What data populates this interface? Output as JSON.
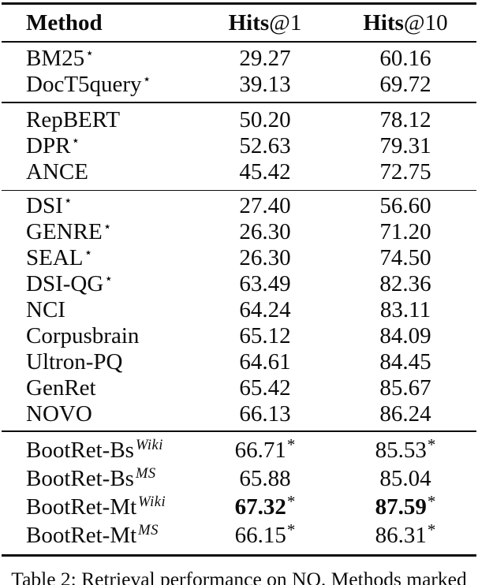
{
  "colors": {
    "text": "#0b0b0b",
    "background": "#ffffff"
  },
  "table": {
    "caption": "Table 2: Retrieval performance on NQ. Methods marked",
    "header": {
      "method": "Method",
      "hits1": {
        "bold": "Hits",
        "rest": "@1"
      },
      "hits10": {
        "bold": "Hits",
        "rest": "@10"
      }
    },
    "groups": [
      {
        "rows": [
          {
            "method": "BM25",
            "method_sup": "⋆",
            "hits1": "29.27",
            "hits10": "60.16"
          },
          {
            "method": "DocT5query",
            "method_sup": "⋆",
            "hits1": "39.13",
            "hits10": "69.72"
          }
        ]
      },
      {
        "rows": [
          {
            "method": "RepBERT",
            "hits1": "50.20",
            "hits10": "78.12"
          },
          {
            "method": "DPR",
            "method_sup": "⋆",
            "hits1": "52.63",
            "hits10": "79.31"
          },
          {
            "method": "ANCE",
            "hits1": "45.42",
            "hits10": "72.75"
          }
        ]
      },
      {
        "rows": [
          {
            "method": "DSI",
            "method_sup": "⋆",
            "hits1": "27.40",
            "hits10": "56.60"
          },
          {
            "method": "GENRE",
            "method_sup": "⋆",
            "hits1": "26.30",
            "hits10": "71.20"
          },
          {
            "method": "SEAL",
            "method_sup": "⋆",
            "hits1": "26.30",
            "hits10": "74.50"
          },
          {
            "method": "DSI-QG",
            "method_sup": "⋆",
            "hits1": "63.49",
            "hits10": "82.36"
          },
          {
            "method": "NCI",
            "hits1": "64.24",
            "hits10": "83.11"
          },
          {
            "method": "Corpusbrain",
            "hits1": "65.12",
            "hits10": "84.09"
          },
          {
            "method": "Ultron-PQ",
            "hits1": "64.61",
            "hits10": "84.45"
          },
          {
            "method": "GenRet",
            "hits1": "65.42",
            "hits10": "85.67"
          },
          {
            "method": "NOVO",
            "hits1": "66.13",
            "hits10": "86.24"
          }
        ]
      },
      {
        "rows": [
          {
            "method": "BootRet-Bs",
            "method_sup": "Wiki",
            "method_sup_italic": true,
            "hits1": "66.71",
            "hits1_sup": "*",
            "hits10": "85.53",
            "hits10_sup": "*"
          },
          {
            "method": "BootRet-Bs",
            "method_sup": "MS",
            "method_sup_italic": true,
            "hits1": "65.88",
            "hits10": "85.04"
          },
          {
            "method": "BootRet-Mt",
            "method_sup": "Wiki",
            "method_sup_italic": true,
            "hits1": "67.32",
            "hits1_sup": "*",
            "hits1_bold": true,
            "hits10": "87.59",
            "hits10_sup": "*",
            "hits10_bold": true
          },
          {
            "method": "BootRet-Mt",
            "method_sup": "MS",
            "method_sup_italic": true,
            "hits1": "66.15",
            "hits1_sup": "*",
            "hits10": "86.31",
            "hits10_sup": "*"
          }
        ]
      }
    ]
  }
}
